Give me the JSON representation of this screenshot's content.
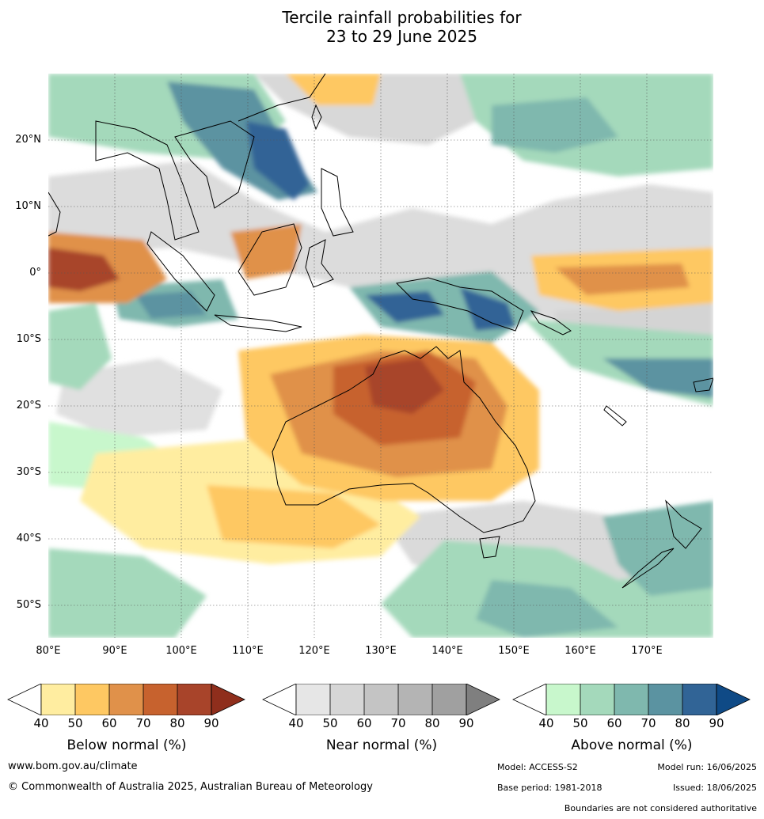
{
  "title_line1": "Tercile rainfall probabilities for",
  "title_line2": "23 to 29 June 2025",
  "map": {
    "lat_ticks": [
      "20°N",
      "10°N",
      "0°",
      "10°S",
      "20°S",
      "30°S",
      "40°S",
      "50°S"
    ],
    "lon_ticks": [
      "80°E",
      "90°E",
      "100°E",
      "110°E",
      "120°E",
      "130°E",
      "140°E",
      "150°E",
      "160°E",
      "170°E"
    ],
    "lon_range": [
      80,
      180
    ],
    "lat_range": [
      -55,
      30
    ]
  },
  "colorbars": [
    {
      "label": "Below normal (%)",
      "ticks": [
        "40",
        "50",
        "60",
        "70",
        "80",
        "90"
      ],
      "colors": [
        "#ffeda0",
        "#fec862",
        "#e0914a",
        "#c7622e",
        "#a8442a",
        "#8f2e1c"
      ]
    },
    {
      "label": "Near normal (%)",
      "ticks": [
        "40",
        "50",
        "60",
        "70",
        "80",
        "90"
      ],
      "colors": [
        "#e6e6e6",
        "#d6d6d6",
        "#c4c4c4",
        "#b4b4b4",
        "#a0a0a0",
        "#7f7f7f"
      ]
    },
    {
      "label": "Above normal (%)",
      "ticks": [
        "40",
        "50",
        "60",
        "70",
        "80",
        "90"
      ],
      "colors": [
        "#c8f7cc",
        "#a4d9bb",
        "#7fb8ae",
        "#5b93a1",
        "#316496",
        "#0f4a86"
      ]
    }
  ],
  "footer": {
    "website": "www.bom.gov.au/climate",
    "copyright": "© Commonwealth of Australia 2025, Australian Bureau of Meteorology",
    "model": "Model: ACCESS-S2",
    "base_period": "Base period: 1981-2018",
    "model_run": "Model run: 16/06/2025",
    "issued": "Issued: 18/06/2025",
    "boundaries": "Boundaries are not considered authoritative"
  }
}
